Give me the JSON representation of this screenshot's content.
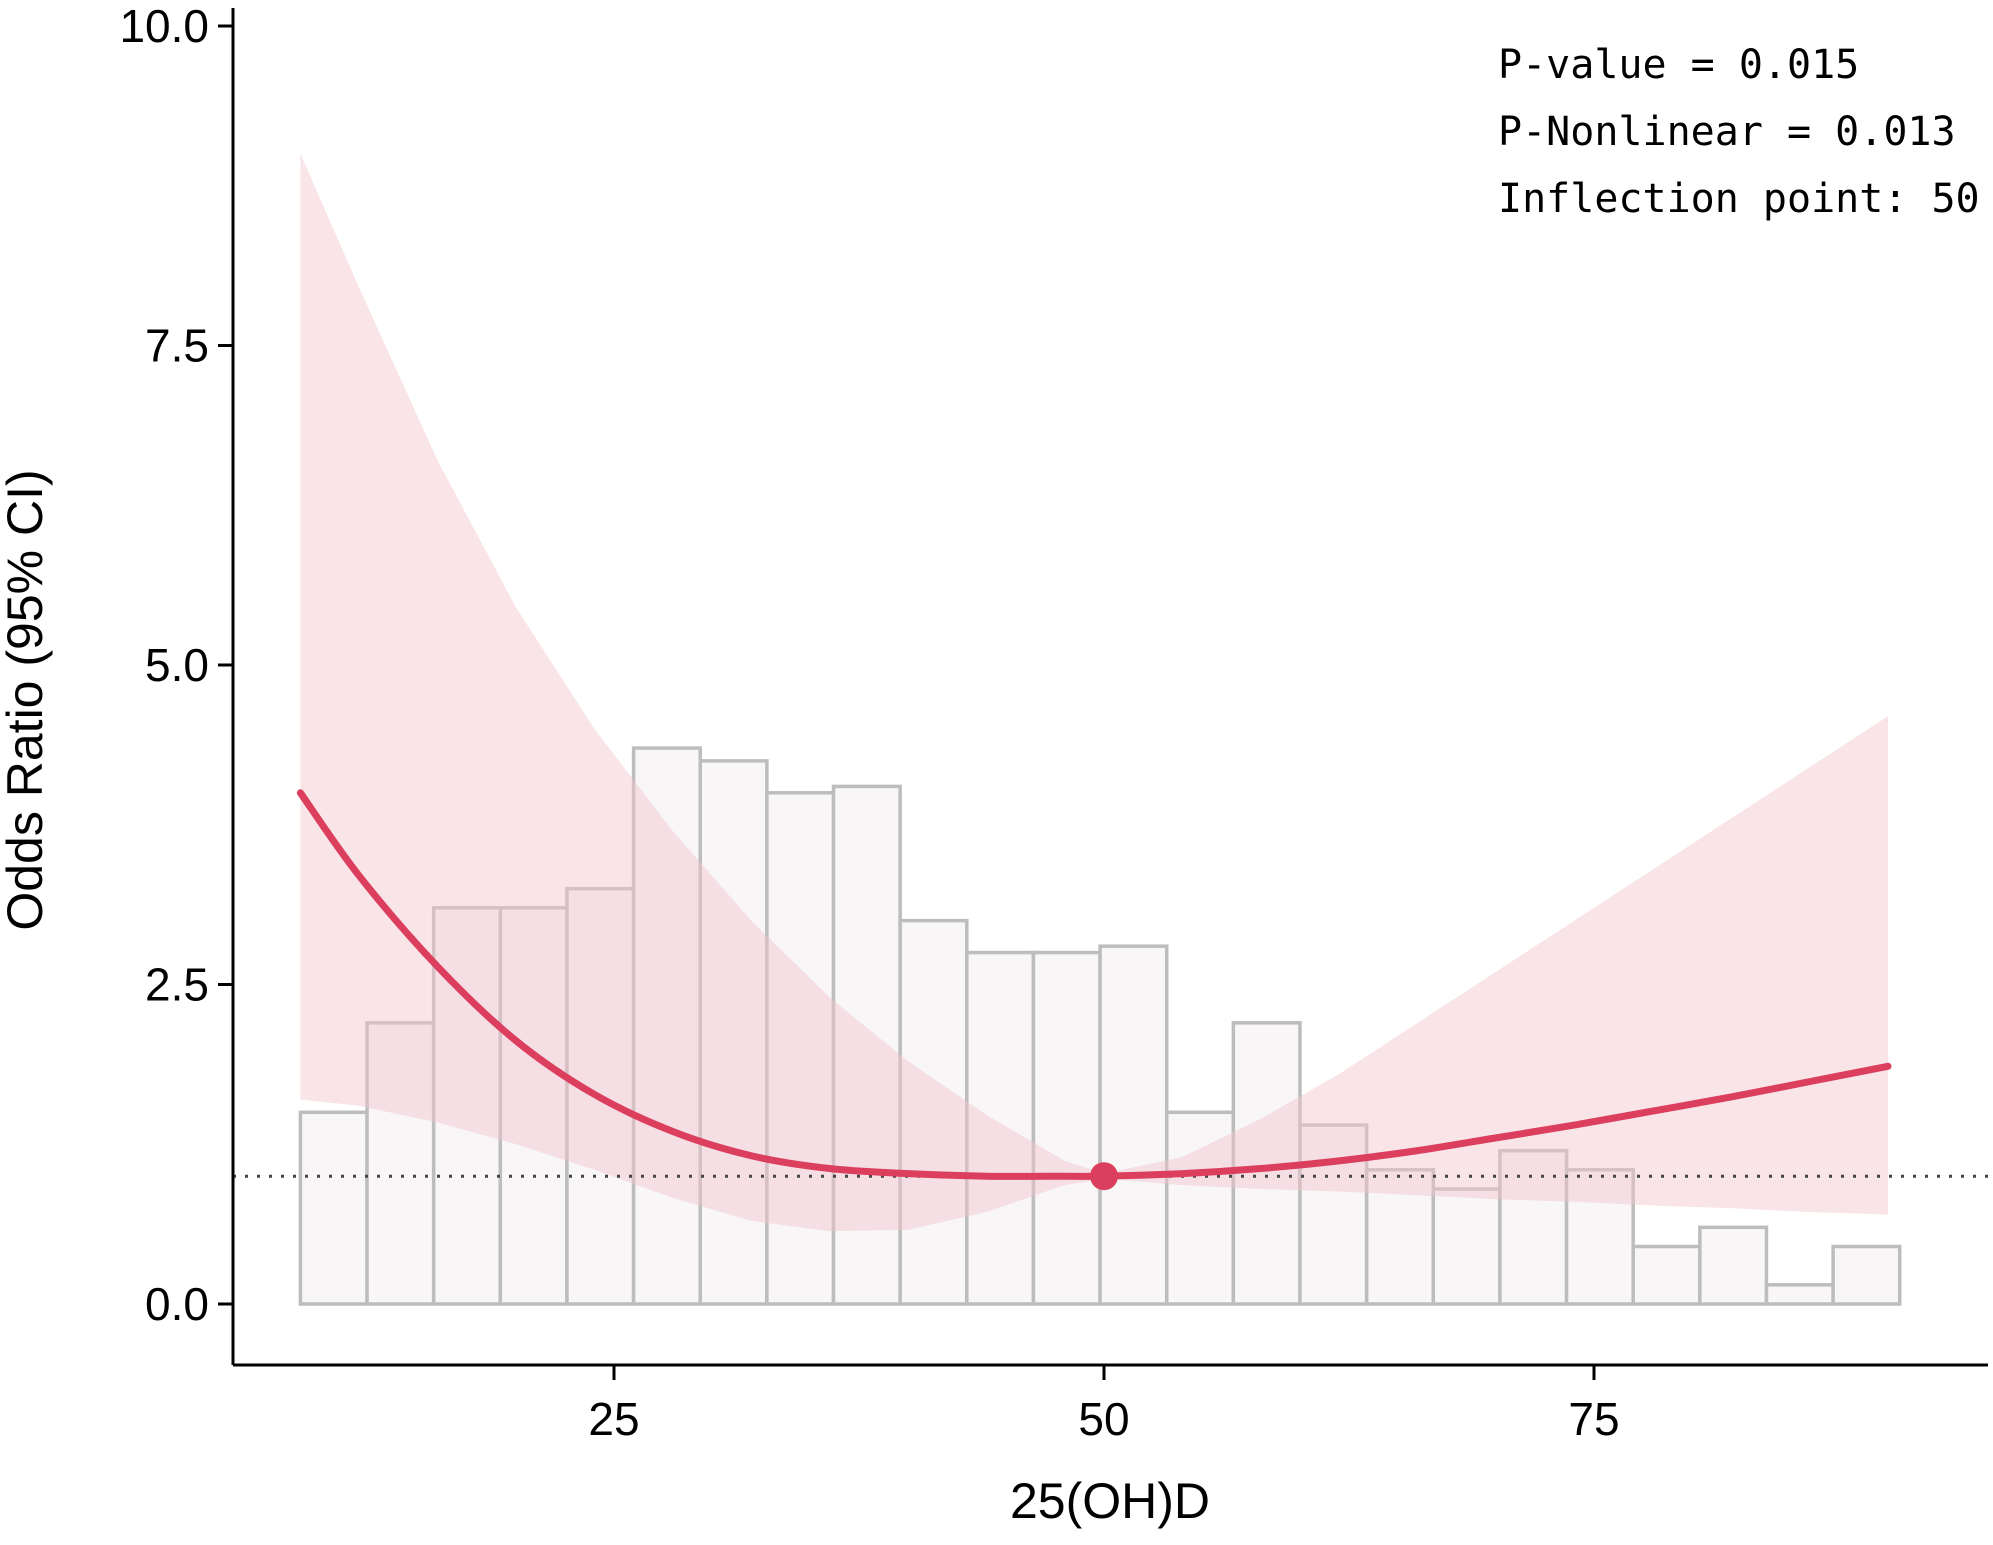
{
  "chart_data": {
    "type": "line",
    "title": "",
    "xlabel": "25(OH)D",
    "ylabel": "Odds Ratio (95% CI)",
    "xlim": [
      5,
      94
    ],
    "ylim": [
      -0.35,
      10.0
    ],
    "x_ticks": [
      25,
      50,
      75
    ],
    "x_tick_labels": [
      "25",
      "50",
      "75"
    ],
    "y_ticks": [
      0,
      2.5,
      5,
      7.5,
      10
    ],
    "y_tick_labels": [
      "0.0",
      "2.5",
      "5.0",
      "7.5",
      "10.0"
    ],
    "reference_line_y": 1.0,
    "annotations": [
      "P-value = 0.015",
      "P-Nonlinear = 0.013",
      "Inflection point: 50"
    ],
    "inflection_point": {
      "x": 50,
      "y": 1.0
    },
    "series": [
      {
        "x": [
          9,
          12,
          16,
          20,
          24,
          28,
          32,
          36,
          40,
          44,
          48,
          50,
          54,
          58,
          62,
          66,
          70,
          74,
          78,
          82,
          86,
          90
        ],
        "y": [
          4.0,
          3.35,
          2.64,
          2.06,
          1.64,
          1.35,
          1.16,
          1.06,
          1.02,
          1.0,
          1.0,
          1.0,
          1.02,
          1.06,
          1.12,
          1.2,
          1.3,
          1.4,
          1.51,
          1.62,
          1.74,
          1.86
        ],
        "lower": [
          1.6,
          1.55,
          1.42,
          1.25,
          1.05,
          0.83,
          0.65,
          0.57,
          0.58,
          0.72,
          0.93,
          0.98,
          0.93,
          0.9,
          0.88,
          0.85,
          0.82,
          0.8,
          0.77,
          0.75,
          0.72,
          0.7
        ],
        "upper": [
          9.0,
          7.95,
          6.6,
          5.45,
          4.5,
          3.7,
          3.0,
          2.4,
          1.9,
          1.48,
          1.12,
          1.02,
          1.15,
          1.45,
          1.8,
          2.2,
          2.6,
          3.0,
          3.4,
          3.8,
          4.2,
          4.6
        ]
      }
    ],
    "histogram": {
      "x_start": 9,
      "bin_width": 3.4,
      "heights": [
        1.5,
        2.2,
        3.1,
        3.1,
        3.25,
        4.35,
        4.25,
        4.0,
        4.05,
        3.0,
        2.75,
        2.75,
        2.8,
        1.5,
        2.2,
        1.4,
        1.05,
        0.9,
        1.2,
        1.05,
        0.45,
        0.6,
        0.15,
        0.45
      ]
    },
    "colors": {
      "curve": "#dc3f5d",
      "band": "#f2c4cc",
      "bar_fill": "#f8f6f7",
      "bar_stroke": "#bdbdbd"
    },
    "grid": false,
    "legend": "none"
  }
}
